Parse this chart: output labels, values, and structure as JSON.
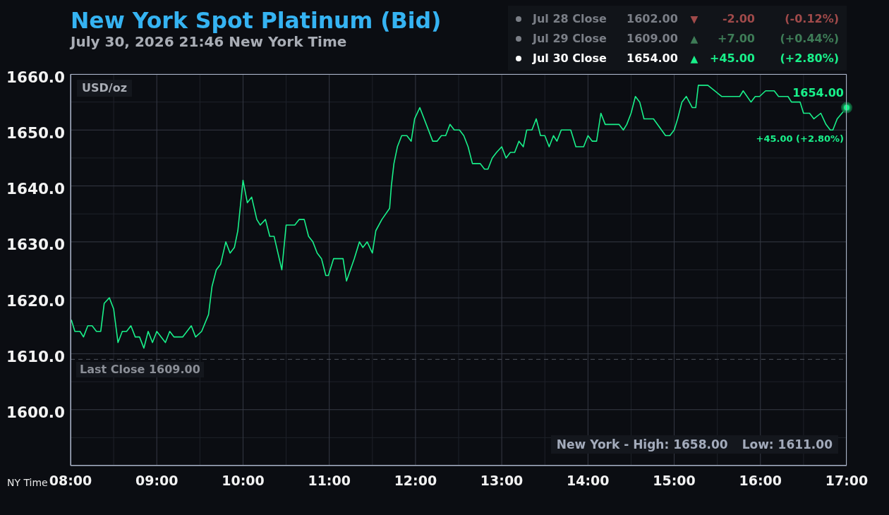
{
  "chart_data": {
    "type": "line",
    "title": "New York Spot Platinum (Bid)",
    "subtitle": "July 30, 2026 21:46 New York Time",
    "ylabel": "USD/oz",
    "xlabel": "NY Time",
    "x": [
      8.01,
      8.05,
      8.11,
      8.15,
      8.2,
      8.25,
      8.3,
      8.35,
      8.39,
      8.45,
      8.5,
      8.55,
      8.6,
      8.65,
      8.7,
      8.75,
      8.8,
      8.85,
      8.9,
      8.95,
      9.0,
      9.1,
      9.15,
      9.2,
      9.3,
      9.4,
      9.45,
      9.52,
      9.6,
      9.64,
      9.69,
      9.74,
      9.8,
      9.85,
      9.9,
      9.94,
      9.96,
      10.0,
      10.05,
      10.1,
      10.16,
      10.2,
      10.26,
      10.31,
      10.36,
      10.45,
      10.5,
      10.6,
      10.65,
      10.71,
      10.76,
      10.81,
      10.86,
      10.91,
      10.96,
      10.99,
      11.05,
      11.16,
      11.2,
      11.29,
      11.35,
      11.39,
      11.44,
      11.5,
      11.54,
      11.61,
      11.7,
      11.72,
      11.75,
      11.79,
      11.84,
      11.9,
      11.95,
      11.99,
      12.05,
      12.2,
      12.25,
      12.3,
      12.35,
      12.4,
      12.45,
      12.51,
      12.56,
      12.61,
      12.66,
      12.75,
      12.8,
      12.84,
      12.89,
      12.94,
      13.0,
      13.05,
      13.1,
      13.15,
      13.2,
      13.25,
      13.29,
      13.35,
      13.4,
      13.45,
      13.5,
      13.55,
      13.6,
      13.64,
      13.69,
      13.8,
      13.86,
      13.95,
      14.0,
      14.05,
      14.1,
      14.15,
      14.2,
      14.36,
      14.41,
      14.45,
      14.5,
      14.55,
      14.6,
      14.65,
      14.76,
      14.9,
      14.95,
      15.0,
      15.04,
      15.09,
      15.14,
      15.21,
      15.25,
      15.28,
      15.34,
      15.39,
      15.55,
      15.76,
      15.8,
      15.89,
      15.94,
      15.99,
      16.06,
      16.16,
      16.21,
      16.32,
      16.36,
      16.46,
      16.5,
      16.57,
      16.62,
      16.7,
      16.76,
      16.81,
      16.84,
      16.89,
      17.0
    ],
    "series": [
      {
        "color": "#19f08a",
        "values": [
          1616,
          1614,
          1614,
          1613,
          1615,
          1615,
          1614,
          1614,
          1619,
          1620,
          1618,
          1612,
          1614,
          1614,
          1615,
          1613,
          1613,
          1611,
          1614,
          1612,
          1614,
          1612,
          1614,
          1613,
          1613,
          1615,
          1613,
          1614,
          1617,
          1622,
          1625,
          1626,
          1630,
          1628,
          1629,
          1632,
          1635,
          1641,
          1637,
          1638,
          1634,
          1633,
          1634,
          1631,
          1631,
          1625,
          1633,
          1633,
          1634,
          1634,
          1631,
          1630,
          1628,
          1627,
          1624,
          1624,
          1627,
          1627,
          1623,
          1627,
          1630,
          1629,
          1630,
          1628,
          1632,
          1634,
          1636,
          1640,
          1644,
          1647,
          1649,
          1649,
          1648,
          1652,
          1654,
          1648,
          1648,
          1649,
          1649,
          1651,
          1650,
          1650,
          1649,
          1647,
          1644,
          1644,
          1643,
          1643,
          1645,
          1646,
          1647,
          1645,
          1646,
          1646,
          1648,
          1647,
          1650,
          1650,
          1652,
          1649,
          1649,
          1647,
          1649,
          1648,
          1650,
          1650,
          1647,
          1647,
          1649,
          1648,
          1648,
          1653,
          1651,
          1651,
          1650,
          1651,
          1653,
          1656,
          1655,
          1652,
          1652,
          1649,
          1649,
          1650,
          1652,
          1655,
          1656,
          1654,
          1654,
          1658,
          1658,
          1658,
          1656,
          1656,
          1657,
          1655,
          1656,
          1656,
          1657,
          1657,
          1656,
          1656,
          1655,
          1655,
          1653,
          1653,
          1652,
          1653,
          1651,
          1650,
          1650,
          1652,
          1654
        ]
      }
    ],
    "xlim": [
      8,
      17
    ],
    "xticks": [
      {
        "value": 8,
        "label": "08:00"
      },
      {
        "value": 8.5,
        "label": null
      },
      {
        "value": 9,
        "label": "09:00"
      },
      {
        "value": 9.5,
        "label": null
      },
      {
        "value": 10,
        "label": "10:00"
      },
      {
        "value": 10.5,
        "label": null
      },
      {
        "value": 11,
        "label": "11:00"
      },
      {
        "value": 11.5,
        "label": null
      },
      {
        "value": 12,
        "label": "12:00"
      },
      {
        "value": 12.5,
        "label": null
      },
      {
        "value": 13,
        "label": "13:00"
      },
      {
        "value": 13.5,
        "label": null
      },
      {
        "value": 14,
        "label": "14:00"
      },
      {
        "value": 14.5,
        "label": null
      },
      {
        "value": 15,
        "label": "15:00"
      },
      {
        "value": 15.5,
        "label": null
      },
      {
        "value": 16,
        "label": "16:00"
      },
      {
        "value": 16.5,
        "label": null
      },
      {
        "value": 17,
        "label": "17:00"
      }
    ],
    "ylim": [
      1590,
      1660
    ],
    "yticks": [
      {
        "value": 1595,
        "label": null
      },
      {
        "value": 1600,
        "label": "1600.0"
      },
      {
        "value": 1605,
        "label": null
      },
      {
        "value": 1610,
        "label": "1610.0"
      },
      {
        "value": 1615,
        "label": null
      },
      {
        "value": 1620,
        "label": "1620.0"
      },
      {
        "value": 1625,
        "label": null
      },
      {
        "value": 1630,
        "label": "1630.0"
      },
      {
        "value": 1635,
        "label": null
      },
      {
        "value": 1640,
        "label": "1640.0"
      },
      {
        "value": 1645,
        "label": null
      },
      {
        "value": 1650,
        "label": "1650.0"
      },
      {
        "value": 1655,
        "label": null
      },
      {
        "value": 1660,
        "label": "1660.0"
      }
    ],
    "grid": true,
    "ref_lines": [
      {
        "axis": "y",
        "value": 1609,
        "label": "Last Close 1609.00",
        "color": "#50545e",
        "line_style": "dashed"
      }
    ],
    "annotations": [
      "Jul 28 Close",
      "1602.00",
      "▼",
      "-2.00",
      "(-0.12%)",
      "Jul 29 Close",
      "1609.00",
      "▲",
      "+7.00",
      "(+0.44%)",
      "Jul 30 Close",
      "1654.00",
      "▲",
      "+45.00",
      "(+2.80%)",
      "New York - High: 1658.00",
      "Low: 1611.00",
      {
        "text": "1654.00",
        "x": 17,
        "y": 1654
      },
      "+45.00 (+2.80%)"
    ]
  }
}
